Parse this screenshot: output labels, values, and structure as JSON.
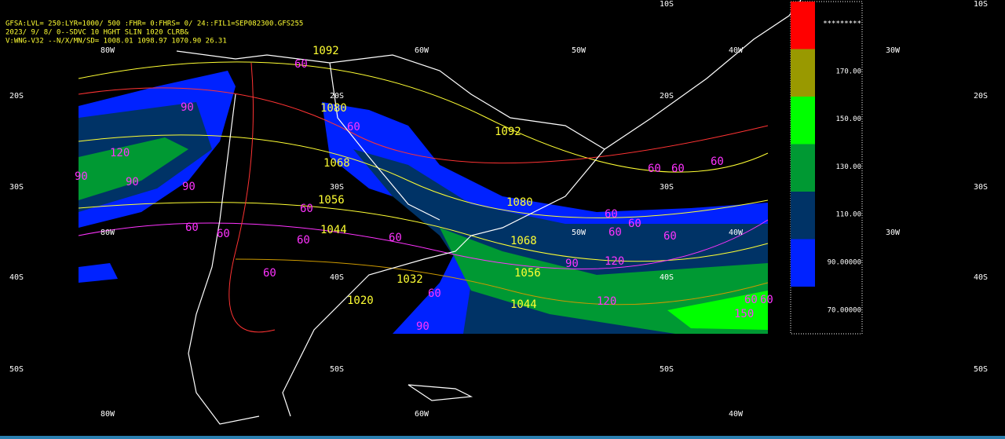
{
  "header": {
    "lines": [
      "GFSA:LVL= 250:LYR=1000/ 500 :FHR=  0:FHRS=  0/ 24::FIL1=SEP082300.GFS255",
      "2023/ 9/ 8/ 0--SDVC  10 HGHT SLIN 1020 CLRB&",
      "V:WNG-V32    --N/X/MN/SD=  1008.01  1098.97  1070.90    26.31"
    ]
  },
  "grid": {
    "lat_labels": [
      "10S",
      "20S",
      "30S",
      "40S",
      "50S"
    ],
    "lon_labels": [
      "80W",
      "60W",
      "50W",
      "40W",
      "30W"
    ]
  },
  "legend": {
    "labels": [
      "*********",
      "170.00",
      "150.00",
      "130.00",
      "110.00",
      "90.00000",
      "70.00000"
    ],
    "colors": [
      "#ff0000",
      "#999900",
      "#00ff00",
      "#009933",
      "#003366",
      "#0022ff"
    ]
  },
  "contours": {
    "heights": [
      "1092",
      "1080",
      "1068",
      "1056",
      "1044",
      "1032",
      "1020"
    ],
    "winds": [
      "60",
      "90",
      "120",
      "150"
    ]
  }
}
